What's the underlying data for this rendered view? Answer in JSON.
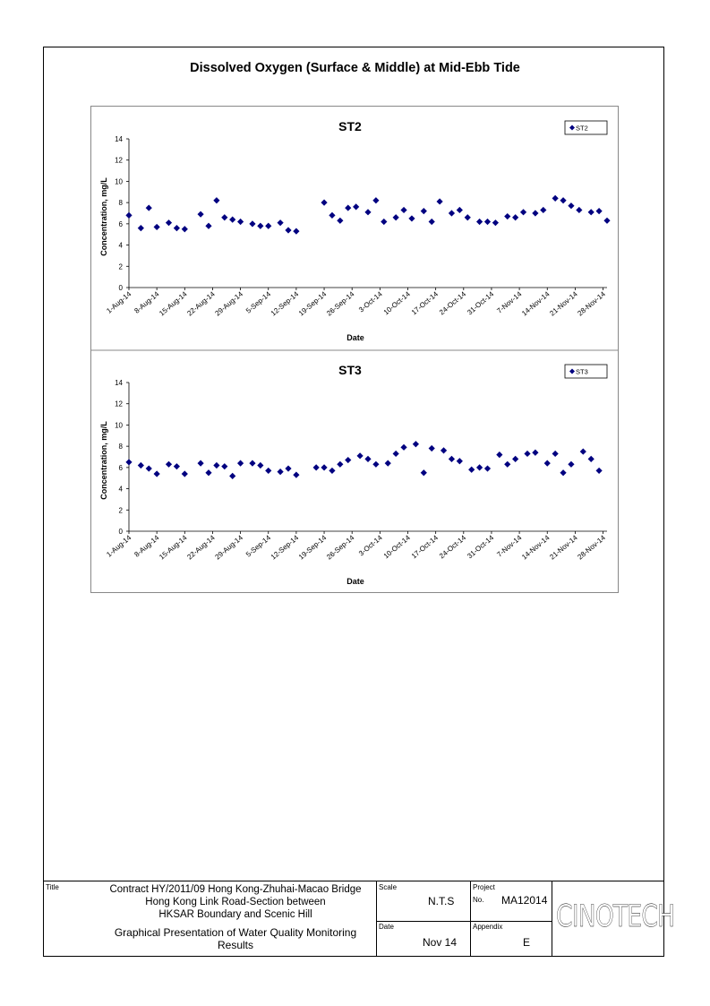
{
  "page": {
    "title": "Dissolved Oxygen (Surface & Middle) at Mid-Ebb Tide"
  },
  "chart_data": [
    {
      "type": "scatter",
      "title": "ST2",
      "xlabel": "Date",
      "ylabel": "Concentration, mg/L",
      "ylim": [
        0,
        14
      ],
      "yticks": [
        "0",
        "2",
        "4",
        "6",
        "8",
        "10",
        "12",
        "14"
      ],
      "xlim": [
        "2014-08-01",
        "2014-11-29"
      ],
      "xticks": [
        "1-Aug-14",
        "8-Aug-14",
        "15-Aug-14",
        "22-Aug-14",
        "29-Aug-14",
        "5-Sep-14",
        "12-Sep-14",
        "19-Sep-14",
        "26-Sep-14",
        "3-Oct-14",
        "10-Oct-14",
        "17-Oct-14",
        "24-Oct-14",
        "31-Oct-14",
        "7-Nov-14",
        "14-Nov-14",
        "21-Nov-14",
        "28-Nov-14"
      ],
      "legend": "top-right",
      "grid": false,
      "series": [
        {
          "name": "ST2",
          "color": "#000080",
          "points": [
            [
              "2014-08-01",
              6.8
            ],
            [
              "2014-08-04",
              5.6
            ],
            [
              "2014-08-06",
              7.5
            ],
            [
              "2014-08-08",
              5.7
            ],
            [
              "2014-08-11",
              6.1
            ],
            [
              "2014-08-13",
              5.6
            ],
            [
              "2014-08-15",
              5.5
            ],
            [
              "2014-08-19",
              6.9
            ],
            [
              "2014-08-21",
              5.8
            ],
            [
              "2014-08-23",
              8.2
            ],
            [
              "2014-08-25",
              6.6
            ],
            [
              "2014-08-27",
              6.4
            ],
            [
              "2014-08-29",
              6.2
            ],
            [
              "2014-09-01",
              6.0
            ],
            [
              "2014-09-03",
              5.8
            ],
            [
              "2014-09-05",
              5.8
            ],
            [
              "2014-09-08",
              6.1
            ],
            [
              "2014-09-10",
              5.4
            ],
            [
              "2014-09-12",
              5.3
            ],
            [
              "2014-09-19",
              8.0
            ],
            [
              "2014-09-21",
              6.8
            ],
            [
              "2014-09-23",
              6.3
            ],
            [
              "2014-09-25",
              7.5
            ],
            [
              "2014-09-27",
              7.6
            ],
            [
              "2014-09-30",
              7.1
            ],
            [
              "2014-10-02",
              8.2
            ],
            [
              "2014-10-04",
              6.2
            ],
            [
              "2014-10-07",
              6.6
            ],
            [
              "2014-10-09",
              7.3
            ],
            [
              "2014-10-11",
              6.5
            ],
            [
              "2014-10-14",
              7.2
            ],
            [
              "2014-10-16",
              6.2
            ],
            [
              "2014-10-18",
              8.1
            ],
            [
              "2014-10-21",
              7.0
            ],
            [
              "2014-10-23",
              7.3
            ],
            [
              "2014-10-25",
              6.6
            ],
            [
              "2014-10-28",
              6.2
            ],
            [
              "2014-10-30",
              6.2
            ],
            [
              "2014-11-01",
              6.1
            ],
            [
              "2014-11-04",
              6.7
            ],
            [
              "2014-11-06",
              6.6
            ],
            [
              "2014-11-08",
              7.1
            ],
            [
              "2014-11-11",
              7.0
            ],
            [
              "2014-11-13",
              7.3
            ],
            [
              "2014-11-16",
              8.4
            ],
            [
              "2014-11-18",
              8.2
            ],
            [
              "2014-11-20",
              7.7
            ],
            [
              "2014-11-22",
              7.3
            ],
            [
              "2014-11-25",
              7.1
            ],
            [
              "2014-11-27",
              7.2
            ],
            [
              "2014-11-29",
              6.3
            ]
          ]
        }
      ]
    },
    {
      "type": "scatter",
      "title": "ST3",
      "xlabel": "Date",
      "ylabel": "Concentration, mg/L",
      "ylim": [
        0,
        14
      ],
      "yticks": [
        "0",
        "2",
        "4",
        "6",
        "8",
        "10",
        "12",
        "14"
      ],
      "xlim": [
        "2014-08-01",
        "2014-11-29"
      ],
      "xticks": [
        "1-Aug-14",
        "8-Aug-14",
        "15-Aug-14",
        "22-Aug-14",
        "29-Aug-14",
        "5-Sep-14",
        "12-Sep-14",
        "19-Sep-14",
        "26-Sep-14",
        "3-Oct-14",
        "10-Oct-14",
        "17-Oct-14",
        "24-Oct-14",
        "31-Oct-14",
        "7-Nov-14",
        "14-Nov-14",
        "21-Nov-14",
        "28-Nov-14"
      ],
      "legend": "top-right",
      "grid": false,
      "series": [
        {
          "name": "ST3",
          "color": "#000080",
          "points": [
            [
              "2014-08-01",
              6.5
            ],
            [
              "2014-08-04",
              6.2
            ],
            [
              "2014-08-06",
              5.9
            ],
            [
              "2014-08-08",
              5.4
            ],
            [
              "2014-08-11",
              6.3
            ],
            [
              "2014-08-13",
              6.1
            ],
            [
              "2014-08-15",
              5.4
            ],
            [
              "2014-08-19",
              6.4
            ],
            [
              "2014-08-21",
              5.5
            ],
            [
              "2014-08-23",
              6.2
            ],
            [
              "2014-08-25",
              6.1
            ],
            [
              "2014-08-27",
              5.2
            ],
            [
              "2014-08-29",
              6.4
            ],
            [
              "2014-09-01",
              6.4
            ],
            [
              "2014-09-03",
              6.2
            ],
            [
              "2014-09-05",
              5.7
            ],
            [
              "2014-09-08",
              5.6
            ],
            [
              "2014-09-10",
              5.9
            ],
            [
              "2014-09-12",
              5.3
            ],
            [
              "2014-09-17",
              6.0
            ],
            [
              "2014-09-19",
              6.0
            ],
            [
              "2014-09-21",
              5.7
            ],
            [
              "2014-09-23",
              6.3
            ],
            [
              "2014-09-25",
              6.7
            ],
            [
              "2014-09-28",
              7.1
            ],
            [
              "2014-09-30",
              6.8
            ],
            [
              "2014-10-02",
              6.3
            ],
            [
              "2014-10-05",
              6.4
            ],
            [
              "2014-10-07",
              7.3
            ],
            [
              "2014-10-09",
              7.9
            ],
            [
              "2014-10-12",
              8.2
            ],
            [
              "2014-10-14",
              5.5
            ],
            [
              "2014-10-16",
              7.8
            ],
            [
              "2014-10-19",
              7.6
            ],
            [
              "2014-10-21",
              6.8
            ],
            [
              "2014-10-23",
              6.6
            ],
            [
              "2014-10-26",
              5.8
            ],
            [
              "2014-10-28",
              6.0
            ],
            [
              "2014-10-30",
              5.9
            ],
            [
              "2014-11-02",
              7.2
            ],
            [
              "2014-11-04",
              6.3
            ],
            [
              "2014-11-06",
              6.8
            ],
            [
              "2014-11-09",
              7.3
            ],
            [
              "2014-11-11",
              7.4
            ],
            [
              "2014-11-14",
              6.4
            ],
            [
              "2014-11-16",
              7.3
            ],
            [
              "2014-11-18",
              5.5
            ],
            [
              "2014-11-20",
              6.3
            ],
            [
              "2014-11-23",
              7.5
            ],
            [
              "2014-11-25",
              6.8
            ],
            [
              "2014-11-27",
              5.7
            ]
          ]
        }
      ]
    }
  ],
  "title_block": {
    "title_label": "Title",
    "title_line1": "Contract HY/2011/09 Hong Kong-Zhuhai-Macao Bridge",
    "title_line2": "Hong Kong Link Road-Section between",
    "title_line3": "HKSAR Boundary and Scenic Hill",
    "subtitle_line1": "Graphical Presentation of Water Quality Monitoring",
    "subtitle_line2": "Results",
    "scale_label": "Scale",
    "scale_value": "N.T.S",
    "date_label": "Date",
    "date_value": "Nov 14",
    "project_label": "Project",
    "no_label": "No.",
    "project_value": "MA12014",
    "appendix_label": "Appendix",
    "appendix_value": "E",
    "logo_text": "CINOTECH"
  }
}
